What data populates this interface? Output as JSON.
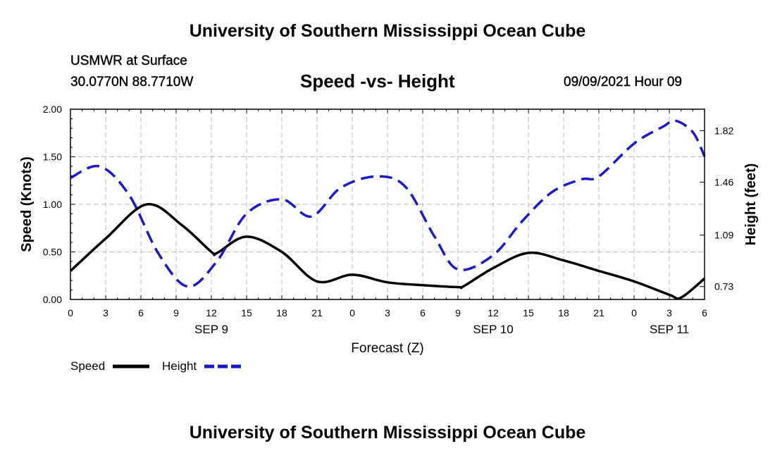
{
  "header": {
    "title": "University of Southern Mississippi Ocean Cube",
    "station": "USMWR at Surface",
    "coords": "30.0770N  88.7710W",
    "chart_title": "Speed -vs- Height",
    "datetime": "09/09/2021 Hour 09"
  },
  "footer": {
    "title": "University of Southern Mississippi Ocean Cube"
  },
  "colors": {
    "speed": "#000000",
    "height": "#1a1acc",
    "grid": "#bbbbbb"
  },
  "chart_data": {
    "type": "line",
    "title": "Speed -vs- Height",
    "xlabel": "Forecast (Z)",
    "ylabel_left": "Speed (Knots)",
    "ylabel_right": "Height (feet)",
    "x_range_hours": [
      0,
      54
    ],
    "x_ticks": [
      0,
      3,
      6,
      9,
      12,
      15,
      18,
      21,
      24,
      27,
      30,
      33,
      36,
      39,
      42,
      45,
      48,
      51,
      54
    ],
    "x_tick_labels": [
      "0",
      "3",
      "6",
      "9",
      "12",
      "15",
      "18",
      "21",
      "0",
      "3",
      "6",
      "9",
      "12",
      "15",
      "18",
      "21",
      "0",
      "3",
      "6"
    ],
    "date_labels": [
      {
        "hour": 12,
        "label": "SEP 9"
      },
      {
        "hour": 36,
        "label": "SEP 10"
      },
      {
        "hour": 51,
        "label": "SEP 11"
      }
    ],
    "ylim_left": [
      0,
      2.0
    ],
    "y_ticks_left": [
      0.0,
      0.5,
      1.0,
      1.5,
      2.0
    ],
    "y_tick_labels_left": [
      "0.00",
      "0.50",
      "1.00",
      "1.50",
      "2.00"
    ],
    "ylim_right": [
      0.64,
      1.97
    ],
    "y_ticks_right": [
      0.73,
      1.09,
      1.46,
      1.82
    ],
    "y_tick_labels_right": [
      "0.73",
      "1.09",
      "1.46",
      "1.82"
    ],
    "grid": true,
    "series": [
      {
        "name": "Speed",
        "axis": "left",
        "style": "solid",
        "x": [
          0,
          3,
          6.5,
          9.5,
          12,
          12.5,
          15,
          18,
          21,
          24,
          27,
          30,
          33,
          33.5,
          36,
          39,
          42,
          45,
          48,
          51,
          52,
          54
        ],
        "y": [
          0.3,
          0.64,
          1.0,
          0.78,
          0.5,
          0.49,
          0.66,
          0.5,
          0.19,
          0.26,
          0.18,
          0.15,
          0.13,
          0.14,
          0.33,
          0.49,
          0.41,
          0.3,
          0.19,
          0.05,
          0.02,
          0.22
        ]
      },
      {
        "name": "Height",
        "axis": "right",
        "style": "dashed",
        "x": [
          0,
          2.5,
          5,
          7.5,
          10,
          12.5,
          15,
          18,
          20.5,
          23,
          26,
          28.5,
          31,
          33,
          36,
          38.5,
          41,
          43.5,
          45,
          48,
          50.5,
          51.5,
          53,
          54
        ],
        "y": [
          1.49,
          1.57,
          1.37,
          0.96,
          0.73,
          0.91,
          1.24,
          1.34,
          1.22,
          1.42,
          1.5,
          1.43,
          1.08,
          0.85,
          0.95,
          1.19,
          1.39,
          1.48,
          1.5,
          1.73,
          1.85,
          1.89,
          1.81,
          1.64
        ]
      }
    ],
    "legend": [
      {
        "label": "Speed",
        "style": "solid"
      },
      {
        "label": "Height",
        "style": "dashed"
      }
    ],
    "legend_position": "bottom-left"
  }
}
